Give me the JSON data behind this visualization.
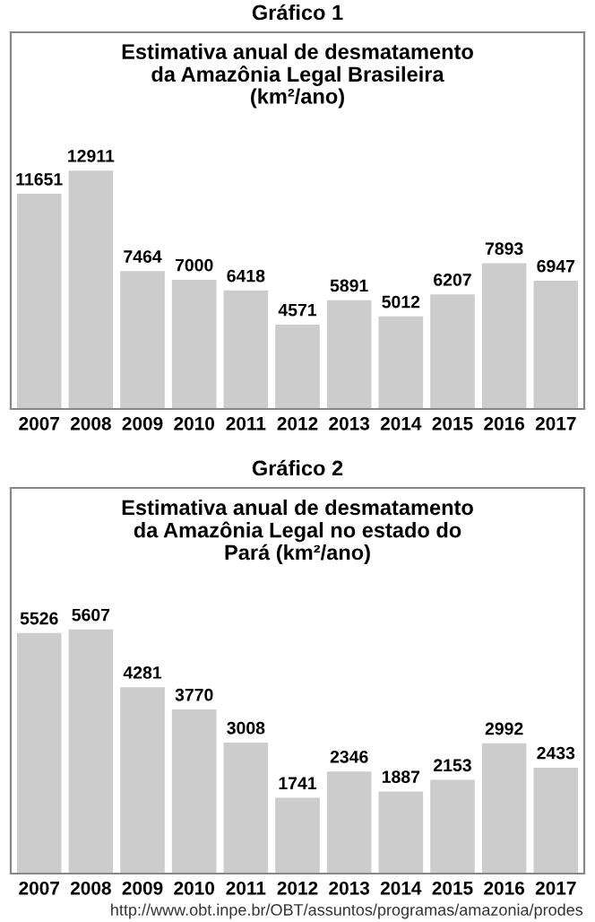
{
  "chart_data": [
    {
      "type": "bar",
      "title": "Gráfico 1",
      "subtitle": "Estimativa anual de desmatamento\nda Amazônia Legal Brasileira\n(km²/ano)",
      "categories": [
        "2007",
        "2008",
        "2009",
        "2010",
        "2011",
        "2012",
        "2013",
        "2014",
        "2015",
        "2016",
        "2017"
      ],
      "values": [
        11651,
        12911,
        7464,
        7000,
        6418,
        4571,
        5891,
        5012,
        6207,
        7893,
        6947
      ],
      "color": "#cccccc",
      "data_labels": true,
      "grid": false,
      "legend": false
    },
    {
      "type": "bar",
      "title": "Gráfico 2",
      "subtitle": "Estimativa anual de desmatamento\nda Amazônia Legal no estado do\nPará (km²/ano)",
      "categories": [
        "2007",
        "2008",
        "2009",
        "2010",
        "2011",
        "2012",
        "2013",
        "2014",
        "2015",
        "2016",
        "2017"
      ],
      "values": [
        5526,
        5607,
        4281,
        3770,
        3008,
        1741,
        2346,
        1887,
        2153,
        2992,
        2433
      ],
      "color": "#cccccc",
      "data_labels": true,
      "grid": false,
      "legend": false,
      "annotations": [
        "http://www.obt.inpe.br/OBT/assuntos/programas/amazonia/prodes"
      ]
    }
  ]
}
